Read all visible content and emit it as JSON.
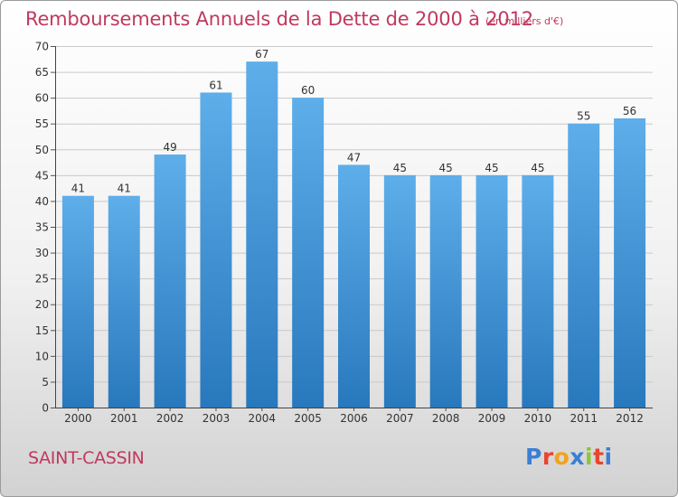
{
  "header": {
    "title": "Remboursements Annuels de la Dette de 2000 à 2012",
    "unit": "(en milliers d'€)"
  },
  "footer": {
    "commune": "SAINT-CASSIN",
    "logo": "Proxiti",
    "logo_colors": [
      "#3a7fd5",
      "#e8452c",
      "#f2a31c",
      "#3a7fd5",
      "#8fc43a",
      "#e8452c",
      "#3a7fd5"
    ]
  },
  "colors": {
    "accent": "#c0395e",
    "bar_light": "#5eaeea",
    "bar_dark": "#2878bd",
    "grid": "#c9c9c9",
    "axis_text": "#333333"
  },
  "chart_data": {
    "type": "bar",
    "categories": [
      "2000",
      "2001",
      "2002",
      "2003",
      "2004",
      "2005",
      "2006",
      "2007",
      "2008",
      "2009",
      "2010",
      "2011",
      "2012"
    ],
    "values": [
      41,
      41,
      49,
      61,
      67,
      60,
      47,
      45,
      45,
      45,
      45,
      55,
      56
    ],
    "ylim": [
      0,
      70
    ],
    "yticks": [
      0,
      5,
      10,
      15,
      20,
      25,
      30,
      35,
      40,
      45,
      50,
      55,
      60,
      65,
      70
    ],
    "grid": true,
    "data_labels": true
  }
}
